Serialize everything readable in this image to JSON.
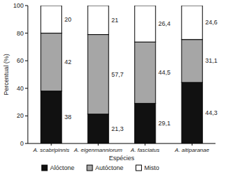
{
  "chart_data": {
    "type": "bar",
    "stacked": true,
    "data_labels": true,
    "x_label": "Espécies",
    "y_label": "Percentual (%)",
    "categories": [
      "A. scabripinnis",
      "A. eigenmanniorum",
      "A. fasciatus",
      "A. altiparanae"
    ],
    "series": [
      {
        "name": "Alóctone",
        "color": "#111111",
        "values": [
          38,
          21.3,
          29.1,
          44.3
        ],
        "value_labels": [
          "38",
          "21,3",
          "29,1",
          "44,3"
        ]
      },
      {
        "name": "Autóctone",
        "color": "#a6a6a6",
        "values": [
          42,
          57.7,
          44.5,
          31.1
        ],
        "value_labels": [
          "42",
          "57,7",
          "44,5",
          "31,1"
        ]
      },
      {
        "name": "Misto",
        "color": "#ffffff",
        "values": [
          20,
          21,
          26.4,
          24.6
        ],
        "value_labels": [
          "20",
          "21",
          "26,4",
          "24,6"
        ]
      }
    ],
    "ylim": [
      0,
      100
    ],
    "yticks": [
      0,
      20,
      40,
      60,
      80,
      100
    ],
    "grid": false
  }
}
